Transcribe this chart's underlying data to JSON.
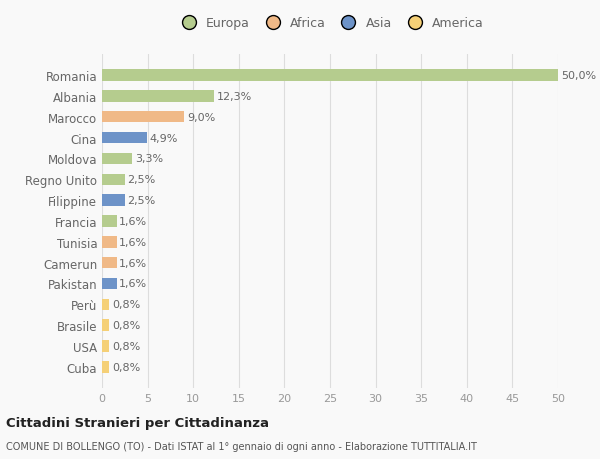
{
  "categories": [
    "Romania",
    "Albania",
    "Marocco",
    "Cina",
    "Moldova",
    "Regno Unito",
    "Filippine",
    "Francia",
    "Tunisia",
    "Camerun",
    "Pakistan",
    "Perù",
    "Brasile",
    "USA",
    "Cuba"
  ],
  "values": [
    50.0,
    12.3,
    9.0,
    4.9,
    3.3,
    2.5,
    2.5,
    1.6,
    1.6,
    1.6,
    1.6,
    0.8,
    0.8,
    0.8,
    0.8
  ],
  "labels": [
    "50,0%",
    "12,3%",
    "9,0%",
    "4,9%",
    "3,3%",
    "2,5%",
    "2,5%",
    "1,6%",
    "1,6%",
    "1,6%",
    "1,6%",
    "0,8%",
    "0,8%",
    "0,8%",
    "0,8%"
  ],
  "colors": [
    "#b5cc8e",
    "#b5cc8e",
    "#f0b987",
    "#6d93c8",
    "#b5cc8e",
    "#b5cc8e",
    "#6d93c8",
    "#b5cc8e",
    "#f0b987",
    "#f0b987",
    "#6d93c8",
    "#f5d077",
    "#f5d077",
    "#f5d077",
    "#f5d077"
  ],
  "continent_colors": {
    "Europa": "#b5cc8e",
    "Africa": "#f0b987",
    "Asia": "#6d93c8",
    "America": "#f5d077"
  },
  "legend_labels": [
    "Europa",
    "Africa",
    "Asia",
    "America"
  ],
  "xlim": [
    0,
    50
  ],
  "xticks": [
    0,
    5,
    10,
    15,
    20,
    25,
    30,
    35,
    40,
    45,
    50
  ],
  "title": "Cittadini Stranieri per Cittadinanza",
  "subtitle": "COMUNE DI BOLLENGO (TO) - Dati ISTAT al 1° gennaio di ogni anno - Elaborazione TUTTITALIA.IT",
  "bg_color": "#f9f9f9",
  "grid_color": "#dddddd",
  "label_fontsize": 8,
  "bar_height": 0.55,
  "text_color": "#666666",
  "title_color": "#222222",
  "subtitle_color": "#555555"
}
